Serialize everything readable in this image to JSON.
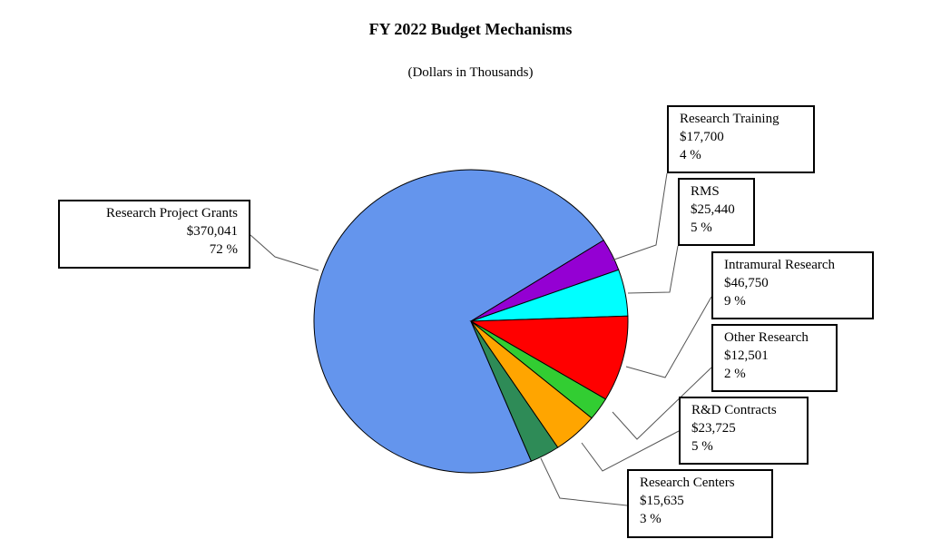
{
  "chart_data": {
    "type": "pie",
    "title": "FY 2022 Budget Mechanisms",
    "subtitle": "(Dollars in Thousands)",
    "slices": [
      {
        "name": "Research Project Grants",
        "value_label": "$370,041",
        "value": 370041,
        "percent_label": "72 %",
        "color": "#6495ED"
      },
      {
        "name": "Research Training",
        "value_label": "$17,700",
        "value": 17700,
        "percent_label": "4 %",
        "color": "#9400D3"
      },
      {
        "name": "RMS",
        "value_label": "$25,440",
        "value": 25440,
        "percent_label": "5 %",
        "color": "#00FFFF"
      },
      {
        "name": "Intramural Research",
        "value_label": "$46,750",
        "value": 46750,
        "percent_label": "9 %",
        "color": "#FF0000"
      },
      {
        "name": "Other Research",
        "value_label": "$12,501",
        "value": 12501,
        "percent_label": "2 %",
        "color": "#32CD32"
      },
      {
        "name": "R&D Contracts",
        "value_label": "$23,725",
        "value": 23725,
        "percent_label": "5 %",
        "color": "#FFA500"
      },
      {
        "name": "Research Centers",
        "value_label": "$15,635",
        "value": 15635,
        "percent_label": "3 %",
        "color": "#2E8B57"
      }
    ]
  }
}
